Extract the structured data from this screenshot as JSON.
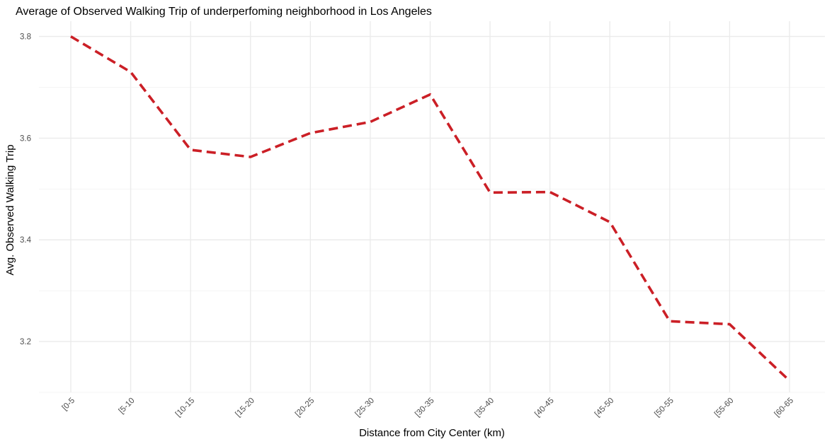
{
  "chart_data": {
    "type": "line",
    "title": "Average of Observed Walking Trip of underperfoming neighborhood in Los Angeles",
    "xlabel": "Distance from City Center (km)",
    "ylabel": "Avg. Observed Walking Trip",
    "categories": [
      "[0-5",
      "[5-10",
      "[10-15",
      "[15-20",
      "[20-25",
      "[25-30",
      "[30-35",
      "[35-40",
      "[40-45",
      "[45-50",
      "[50-55",
      "[55-60",
      "[60-65"
    ],
    "series": [
      {
        "values": [
          3.8,
          3.73,
          3.577,
          3.563,
          3.61,
          3.632,
          3.686,
          3.493,
          3.494,
          3.435,
          3.24,
          3.234,
          3.123
        ],
        "color": "#cb1f26",
        "line_style": "dashed"
      }
    ],
    "ylim": [
      3.1,
      3.83
    ],
    "yticks": [
      3.2,
      3.4,
      3.6,
      3.8
    ],
    "ytick_labels": [
      "3.2",
      "3.4",
      "3.6",
      "3.8"
    ],
    "grid": true,
    "legend": "none"
  }
}
